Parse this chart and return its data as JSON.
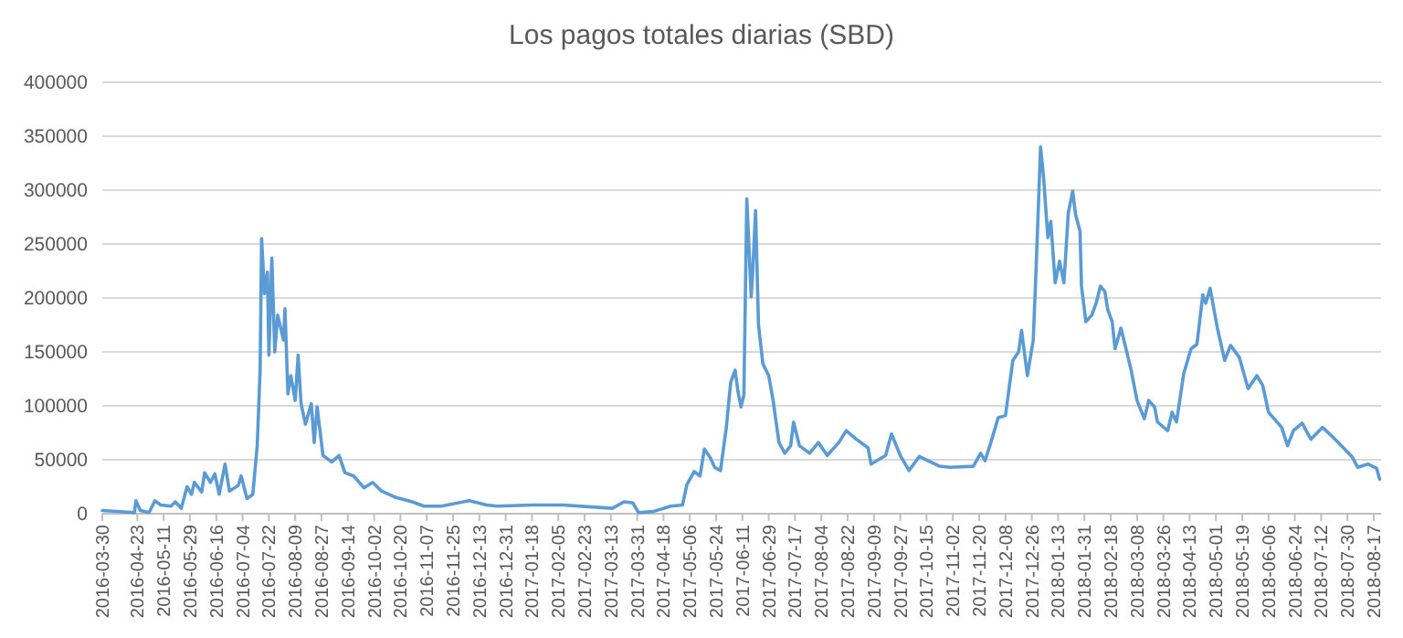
{
  "chart_data": {
    "type": "line",
    "title": "Los pagos totales diarias (SBD)",
    "x": [
      "2016-03-30",
      "2016-04-21",
      "2016-04-22",
      "2016-04-25",
      "2016-05-01",
      "2016-05-05",
      "2016-05-09",
      "2016-05-16",
      "2016-05-19",
      "2016-05-23",
      "2016-05-27",
      "2016-05-30",
      "2016-06-01",
      "2016-06-06",
      "2016-06-08",
      "2016-06-12",
      "2016-06-15",
      "2016-06-18",
      "2016-06-22",
      "2016-06-25",
      "2016-07-01",
      "2016-07-03",
      "2016-07-07",
      "2016-07-11",
      "2016-07-14",
      "2016-07-16",
      "2016-07-17",
      "2016-07-19",
      "2016-07-21",
      "2016-07-22",
      "2016-07-24",
      "2016-07-26",
      "2016-07-28",
      "2016-08-01",
      "2016-08-02",
      "2016-08-04",
      "2016-08-06",
      "2016-08-09",
      "2016-08-11",
      "2016-08-13",
      "2016-08-16",
      "2016-08-20",
      "2016-08-22",
      "2016-08-24",
      "2016-08-28",
      "2016-09-03",
      "2016-09-08",
      "2016-09-12",
      "2016-09-18",
      "2016-09-25",
      "2016-10-01",
      "2016-10-07",
      "2016-10-17",
      "2016-10-28",
      "2016-11-05",
      "2016-11-17",
      "2016-12-06",
      "2016-12-18",
      "2016-12-25",
      "2017-01-18",
      "2017-02-08",
      "2017-03-14",
      "2017-03-22",
      "2017-03-28",
      "2017-04-01",
      "2017-04-11",
      "2017-04-23",
      "2017-05-01",
      "2017-05-04",
      "2017-05-09",
      "2017-05-13",
      "2017-05-16",
      "2017-05-20",
      "2017-05-23",
      "2017-05-27",
      "2017-05-31",
      "2017-06-03",
      "2017-06-06",
      "2017-06-08",
      "2017-06-10",
      "2017-06-12",
      "2017-06-14",
      "2017-06-17",
      "2017-06-18",
      "2017-06-20",
      "2017-06-22",
      "2017-06-25",
      "2017-06-29",
      "2017-07-02",
      "2017-07-06",
      "2017-07-10",
      "2017-07-14",
      "2017-07-16",
      "2017-07-20",
      "2017-07-27",
      "2017-08-02",
      "2017-08-08",
      "2017-08-16",
      "2017-08-21",
      "2017-08-28",
      "2017-09-05",
      "2017-09-07",
      "2017-09-17",
      "2017-09-21",
      "2017-09-27",
      "2017-10-03",
      "2017-10-10",
      "2017-10-24",
      "2017-10-31",
      "2017-11-16",
      "2017-11-21",
      "2017-11-24",
      "2017-11-28",
      "2017-12-03",
      "2017-12-08",
      "2017-12-13",
      "2017-12-17",
      "2017-12-19",
      "2017-12-23",
      "2017-12-27",
      "2017-12-29",
      "2018-01-01",
      "2018-01-03",
      "2018-01-06",
      "2018-01-08",
      "2018-01-11",
      "2018-01-14",
      "2018-01-17",
      "2018-01-20",
      "2018-01-23",
      "2018-01-25",
      "2018-01-28",
      "2018-01-29",
      "2018-02-01",
      "2018-02-05",
      "2018-02-08",
      "2018-02-11",
      "2018-02-14",
      "2018-02-16",
      "2018-02-19",
      "2018-02-21",
      "2018-02-25",
      "2018-03-01",
      "2018-03-04",
      "2018-03-08",
      "2018-03-13",
      "2018-03-16",
      "2018-03-20",
      "2018-03-22",
      "2018-03-29",
      "2018-04-01",
      "2018-04-04",
      "2018-04-09",
      "2018-04-14",
      "2018-04-18",
      "2018-04-22",
      "2018-04-24",
      "2018-04-27",
      "2018-05-02",
      "2018-05-07",
      "2018-05-11",
      "2018-05-17",
      "2018-05-23",
      "2018-05-29",
      "2018-06-02",
      "2018-06-06",
      "2018-06-15",
      "2018-06-19",
      "2018-06-23",
      "2018-06-29",
      "2018-07-05",
      "2018-07-13",
      "2018-07-20",
      "2018-07-28",
      "2018-08-02",
      "2018-08-06",
      "2018-08-13",
      "2018-08-19",
      "2018-08-21"
    ],
    "series": [
      {
        "color": "#5b9bd5",
        "values": [
          3000,
          1000,
          12000,
          3000,
          1000,
          12000,
          8000,
          7000,
          11000,
          5000,
          25000,
          18000,
          29000,
          20000,
          38000,
          29000,
          37000,
          18000,
          46000,
          21000,
          26000,
          35000,
          14000,
          18000,
          63000,
          134000,
          255000,
          204000,
          224000,
          147000,
          237000,
          150000,
          184000,
          161000,
          190000,
          111000,
          128000,
          105000,
          147000,
          102000,
          83000,
          102000,
          66000,
          99000,
          54000,
          48000,
          54000,
          38000,
          35000,
          24000,
          29000,
          21000,
          15000,
          11000,
          7000,
          7000,
          12000,
          8000,
          7000,
          8000,
          8000,
          5000,
          11000,
          10000,
          1000,
          2000,
          7000,
          8000,
          27000,
          39000,
          35000,
          60000,
          52000,
          43000,
          40000,
          80000,
          122000,
          133000,
          113000,
          99000,
          110000,
          292000,
          201000,
          223000,
          281000,
          175000,
          139000,
          128000,
          105000,
          66000,
          56000,
          63000,
          85000,
          63000,
          56000,
          66000,
          54000,
          66000,
          77000,
          69000,
          61000,
          46000,
          54000,
          74000,
          54000,
          40000,
          53000,
          44000,
          43000,
          44000,
          56000,
          49000,
          66000,
          89000,
          91000,
          142000,
          150000,
          170000,
          128000,
          161000,
          229000,
          340000,
          313000,
          256000,
          271000,
          214000,
          234000,
          214000,
          279000,
          299000,
          277000,
          262000,
          211000,
          178000,
          184000,
          195000,
          211000,
          206000,
          189000,
          178000,
          153000,
          172000,
          150000,
          133000,
          105000,
          88000,
          105000,
          99000,
          85000,
          77000,
          94000,
          85000,
          130000,
          153000,
          157000,
          203000,
          195000,
          209000,
          172000,
          142000,
          156000,
          145000,
          116000,
          128000,
          119000,
          94000,
          80000,
          63000,
          77000,
          84000,
          69000,
          80000,
          71000,
          60000,
          53000,
          43000,
          46000,
          42000,
          32000
        ]
      }
    ],
    "xlim": [
      "2016-03-30",
      "2018-08-22"
    ],
    "xticks": [
      "2016-03-30",
      "2016-04-23",
      "2016-05-11",
      "2016-05-29",
      "2016-06-16",
      "2016-07-04",
      "2016-07-22",
      "2016-08-09",
      "2016-08-27",
      "2016-09-14",
      "2016-10-02",
      "2016-10-20",
      "2016-11-07",
      "2016-11-25",
      "2016-12-13",
      "2016-12-31",
      "2017-01-18",
      "2017-02-05",
      "2017-02-23",
      "2017-03-13",
      "2017-03-31",
      "2017-04-18",
      "2017-05-06",
      "2017-05-24",
      "2017-06-11",
      "2017-06-29",
      "2017-07-17",
      "2017-08-04",
      "2017-08-22",
      "2017-09-09",
      "2017-09-27",
      "2017-10-15",
      "2017-11-02",
      "2017-11-20",
      "2017-12-08",
      "2017-12-26",
      "2018-01-13",
      "2018-01-31",
      "2018-02-18",
      "2018-03-08",
      "2018-03-26",
      "2018-04-13",
      "2018-05-01",
      "2018-05-19",
      "2018-06-06",
      "2018-06-24",
      "2018-07-12",
      "2018-07-30",
      "2018-08-17"
    ],
    "ylim": [
      0,
      400000
    ],
    "yticks": [
      0,
      50000,
      100000,
      150000,
      200000,
      250000,
      300000,
      350000,
      400000
    ],
    "grid": "y",
    "marker": "none",
    "line_style": "solid"
  }
}
